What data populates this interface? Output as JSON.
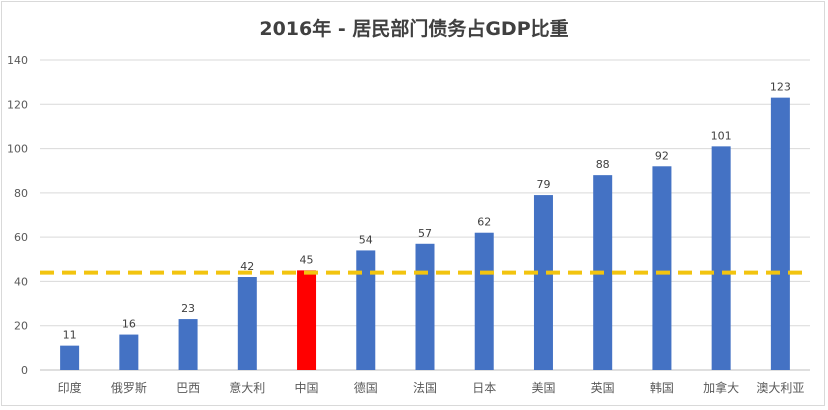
{
  "chart_data": {
    "type": "bar",
    "title": "2016年 - 居民部门债务占GDP比重",
    "xlabel": "",
    "ylabel": "",
    "categories": [
      "印度",
      "俄罗斯",
      "巴西",
      "意大利",
      "中国",
      "德国",
      "法国",
      "日本",
      "美国",
      "英国",
      "韩国",
      "加拿大",
      "澳大利亚"
    ],
    "values": [
      11,
      16,
      23,
      42,
      45,
      54,
      57,
      62,
      79,
      88,
      92,
      101,
      123
    ],
    "ylim": [
      0,
      140
    ],
    "yticks": [
      0,
      20,
      40,
      60,
      80,
      100,
      120,
      140
    ],
    "grid": true,
    "data_labels": true,
    "reference_line": {
      "value": 44,
      "style": "dashed",
      "color": "#f2c40f"
    },
    "colors": {
      "bar": "#4472c4",
      "highlight": "#ff0000",
      "highlight_category": "中国"
    }
  }
}
